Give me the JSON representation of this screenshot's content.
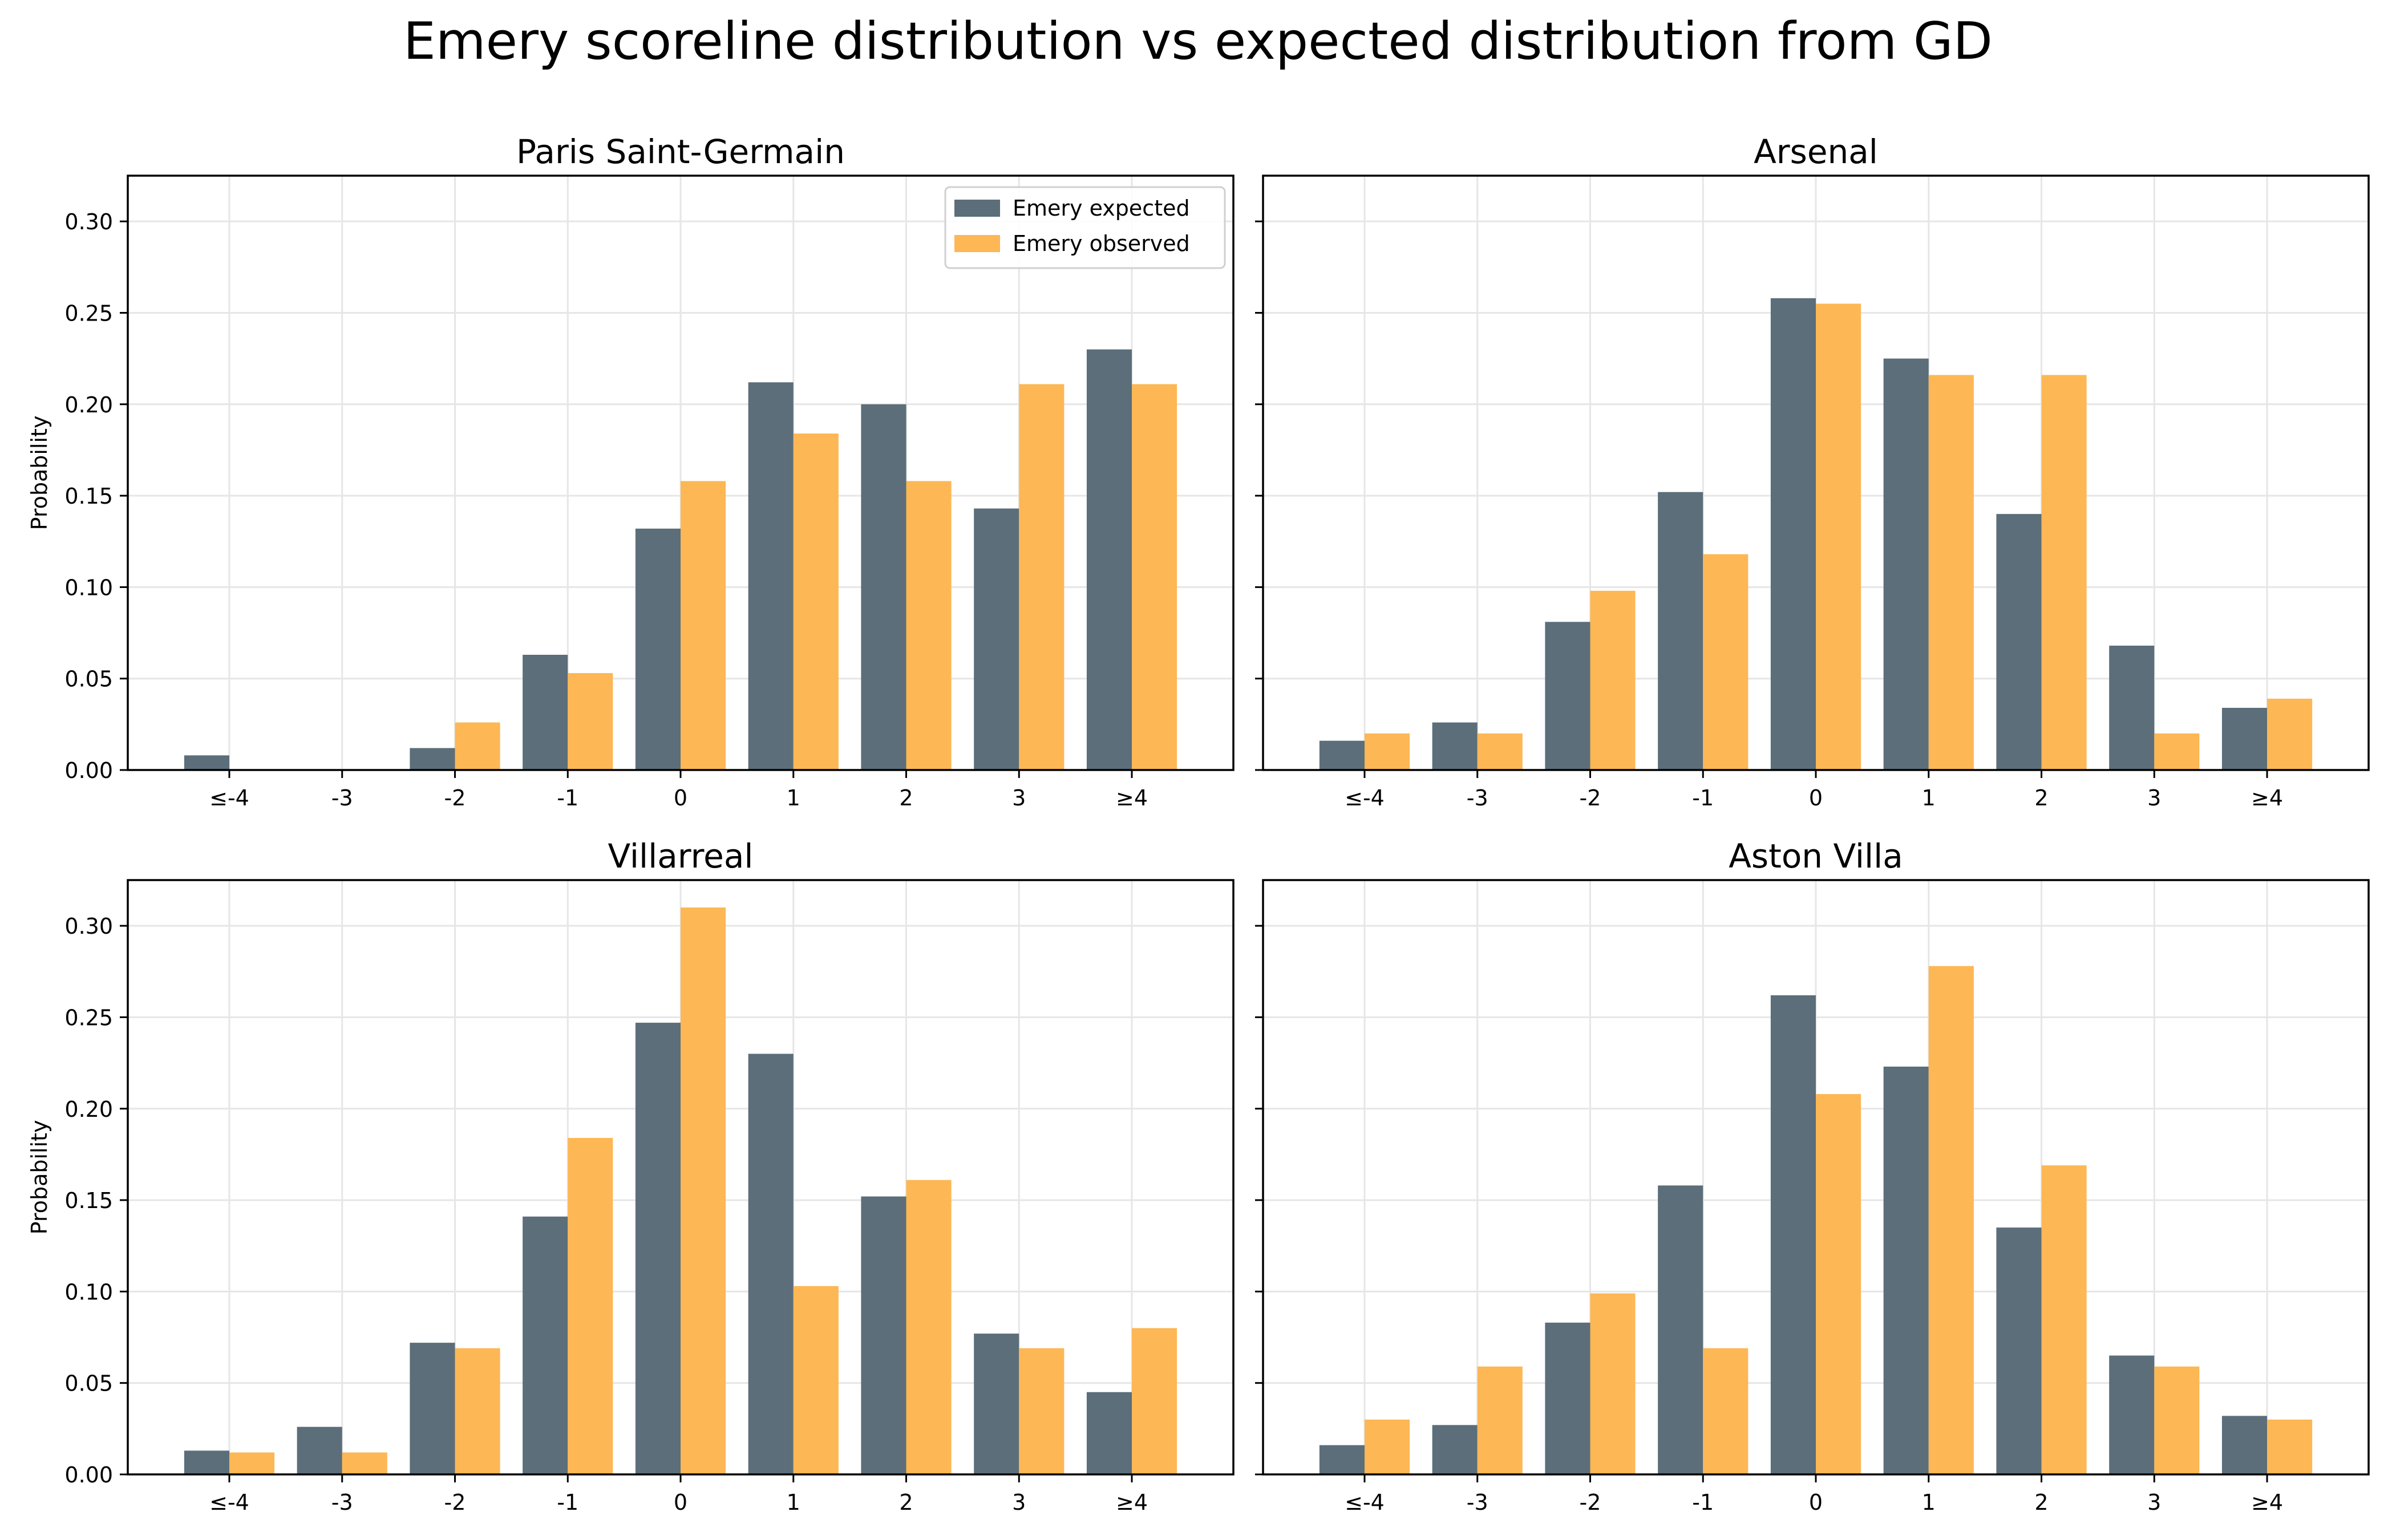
{
  "chart_data": {
    "type": "bar",
    "title": "Emery scoreline distribution vs expected distribution from GD",
    "ylabel": "Probability",
    "xlabel": "",
    "ylim": [
      0,
      0.325
    ],
    "yticks": [
      "0.00",
      "0.05",
      "0.10",
      "0.15",
      "0.20",
      "0.25",
      "0.30"
    ],
    "grid": true,
    "sharey": true,
    "legend": {
      "location": "top-right",
      "panel": 0,
      "entries": [
        "Emery expected",
        "Emery observed"
      ]
    },
    "colors": {
      "expected": "#5b6e7a",
      "observed": "#fdb755",
      "grid": "#e6e6e6"
    },
    "categories": [
      "≤-4",
      "-3",
      "-2",
      "-1",
      "0",
      "1",
      "2",
      "3",
      "≥4"
    ],
    "panels": [
      {
        "title": "Paris Saint-Germain",
        "series": [
          {
            "name": "Emery expected",
            "values": [
              0.008,
              0.0,
              0.012,
              0.063,
              0.132,
              0.212,
              0.2,
              0.143,
              0.23
            ]
          },
          {
            "name": "Emery observed",
            "values": [
              0.0,
              0.0,
              0.026,
              0.053,
              0.158,
              0.184,
              0.158,
              0.211,
              0.211
            ]
          }
        ]
      },
      {
        "title": "Arsenal",
        "series": [
          {
            "name": "Emery expected",
            "values": [
              0.016,
              0.026,
              0.081,
              0.152,
              0.258,
              0.225,
              0.14,
              0.068,
              0.034
            ]
          },
          {
            "name": "Emery observed",
            "values": [
              0.02,
              0.02,
              0.098,
              0.118,
              0.255,
              0.216,
              0.216,
              0.02,
              0.039
            ]
          }
        ]
      },
      {
        "title": "Villarreal",
        "series": [
          {
            "name": "Emery expected",
            "values": [
              0.013,
              0.026,
              0.072,
              0.141,
              0.247,
              0.23,
              0.152,
              0.077,
              0.045
            ]
          },
          {
            "name": "Emery observed",
            "values": [
              0.012,
              0.012,
              0.069,
              0.184,
              0.31,
              0.103,
              0.161,
              0.069,
              0.08
            ]
          }
        ]
      },
      {
        "title": "Aston Villa",
        "series": [
          {
            "name": "Emery expected",
            "values": [
              0.016,
              0.027,
              0.083,
              0.158,
              0.262,
              0.223,
              0.135,
              0.065,
              0.032
            ]
          },
          {
            "name": "Emery observed",
            "values": [
              0.03,
              0.059,
              0.099,
              0.069,
              0.208,
              0.278,
              0.169,
              0.059,
              0.03
            ]
          }
        ]
      }
    ]
  }
}
